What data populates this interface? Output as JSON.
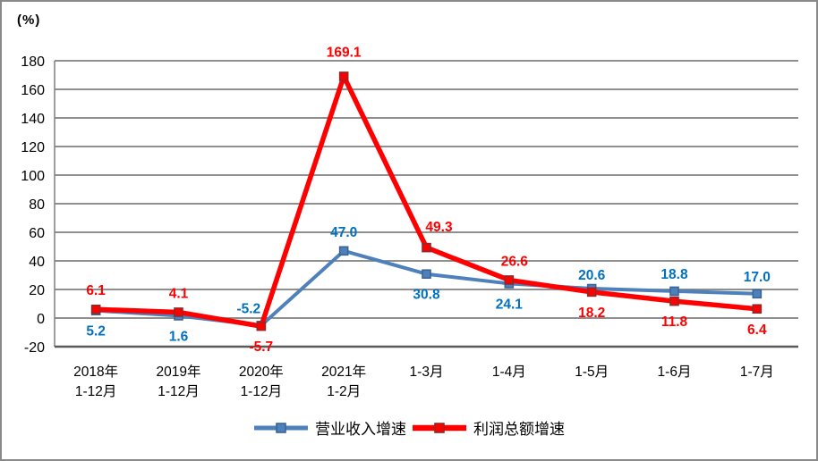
{
  "window": {
    "background": "#FFFFFF",
    "border_color": "#898989"
  },
  "chart_data": {
    "type": "line",
    "title": "",
    "unit_label": "(%)",
    "xlabel": "",
    "ylabel": "(%)",
    "ylim": [
      -20,
      180
    ],
    "ytick_step": 20,
    "grid": true,
    "legend_position": "bottom",
    "gridline_color": "#7F7F7F",
    "axis_line_color": "#595959",
    "tick_label_color": "#000000",
    "categories": [
      [
        "2018年",
        "1-12月"
      ],
      [
        "2019年",
        "1-12月"
      ],
      [
        "2020年",
        "1-12月"
      ],
      [
        "2021年",
        "1-2月"
      ],
      [
        "1-3月",
        ""
      ],
      [
        "1-4月",
        ""
      ],
      [
        "1-5月",
        ""
      ],
      [
        "1-6月",
        ""
      ],
      [
        "1-7月",
        ""
      ]
    ],
    "series": [
      {
        "name": "营业收入增速",
        "color": "#4E80BC",
        "marker_stroke": "#3A6596",
        "label_color": "#0070C0",
        "line_width": 4,
        "values": [
          5.2,
          1.6,
          -5.2,
          47.0,
          30.8,
          24.1,
          20.6,
          18.8,
          17.0
        ],
        "label_side": [
          "below",
          "below",
          "above",
          "above",
          "below",
          "below",
          "above",
          "above",
          "above"
        ],
        "label_dx": [
          0,
          0,
          -14,
          0,
          0,
          0,
          0,
          0,
          0
        ],
        "label_dy": [
          0,
          0,
          -4,
          -6,
          0,
          0,
          0,
          -4,
          -4
        ]
      },
      {
        "name": "利润总额增速",
        "color": "#FF0000",
        "marker_stroke": "#8E2A2A",
        "label_color": "#FF0000",
        "line_width": 5.5,
        "values": [
          6.1,
          4.1,
          -5.7,
          169.1,
          49.3,
          26.6,
          18.2,
          11.8,
          6.4
        ],
        "label_side": [
          "above",
          "above",
          "below",
          "above",
          "above",
          "above",
          "below",
          "below",
          "below"
        ],
        "label_dx": [
          0,
          0,
          0,
          0,
          14,
          6,
          0,
          0,
          0
        ],
        "label_dy": [
          -6,
          -6,
          0,
          -12,
          -8,
          -6,
          0,
          0,
          0
        ]
      }
    ]
  }
}
